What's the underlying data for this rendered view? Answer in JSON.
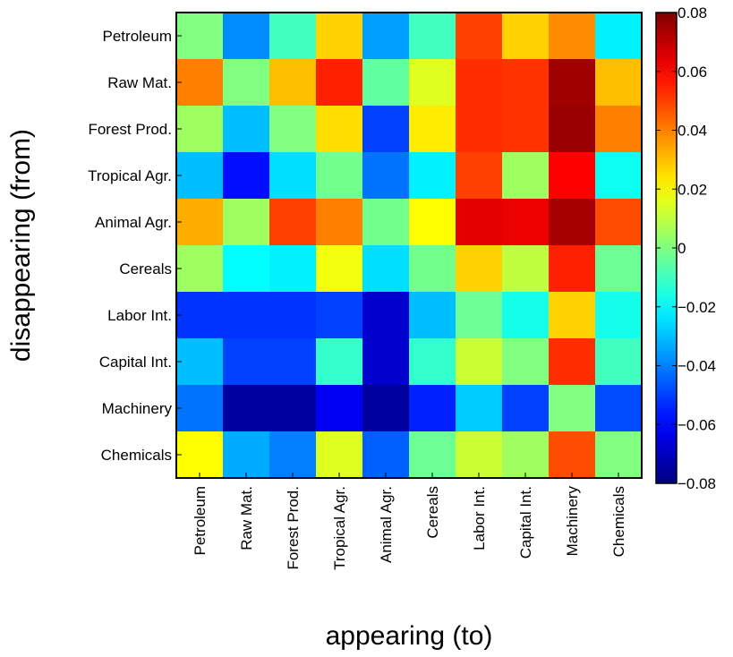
{
  "chart_data": {
    "type": "heatmap",
    "title": "",
    "xlabel": "appearing (to)",
    "ylabel": "disappearing (from)",
    "x_categories": [
      "Petroleum",
      "Raw Mat.",
      "Forest Prod.",
      "Tropical Agr.",
      "Animal Agr.",
      "Cereals",
      "Labor Int.",
      "Capital Int.",
      "Machinery",
      "Chemicals"
    ],
    "y_categories": [
      "Petroleum",
      "Raw Mat.",
      "Forest Prod.",
      "Tropical Agr.",
      "Animal Agr.",
      "Cereals",
      "Labor Int.",
      "Capital Int.",
      "Machinery",
      "Chemicals"
    ],
    "values": [
      [
        0.0,
        -0.038,
        -0.01,
        0.027,
        -0.035,
        -0.01,
        0.05,
        0.027,
        0.038,
        -0.022
      ],
      [
        0.04,
        0.0,
        0.03,
        0.055,
        -0.005,
        0.015,
        0.053,
        0.052,
        0.075,
        0.03
      ],
      [
        0.005,
        -0.03,
        0.0,
        0.025,
        -0.05,
        0.023,
        0.053,
        0.052,
        0.076,
        0.04
      ],
      [
        -0.03,
        -0.058,
        -0.025,
        -0.002,
        -0.042,
        -0.022,
        0.05,
        0.005,
        0.06,
        -0.018
      ],
      [
        0.033,
        0.005,
        0.05,
        0.04,
        -0.002,
        0.02,
        0.064,
        0.063,
        0.074,
        0.048
      ],
      [
        0.005,
        -0.02,
        -0.022,
        0.018,
        -0.025,
        -0.002,
        0.027,
        0.01,
        0.055,
        -0.003
      ],
      [
        -0.052,
        -0.052,
        -0.052,
        -0.05,
        -0.068,
        -0.03,
        -0.003,
        -0.017,
        0.027,
        -0.017
      ],
      [
        -0.03,
        -0.05,
        -0.05,
        -0.012,
        -0.068,
        -0.012,
        0.012,
        0.0,
        0.053,
        -0.01
      ],
      [
        -0.042,
        -0.075,
        -0.075,
        -0.062,
        -0.075,
        -0.055,
        -0.028,
        -0.05,
        0.0,
        -0.048
      ],
      [
        0.02,
        -0.033,
        -0.04,
        0.015,
        -0.045,
        -0.003,
        0.012,
        0.005,
        0.048,
        0.0
      ]
    ],
    "colorbar": {
      "colormap": "jet",
      "min": -0.08,
      "max": 0.08,
      "ticks": [
        0.08,
        0.06,
        0.04,
        0.02,
        0,
        -0.02,
        -0.04,
        -0.06,
        -0.08
      ],
      "tick_labels": [
        "0.08",
        "0.06",
        "0.04",
        "0.02",
        "0",
        "−0.02",
        "−0.04",
        "−0.06",
        "−0.08"
      ]
    },
    "grid": false,
    "legend": "colorbar-right"
  }
}
